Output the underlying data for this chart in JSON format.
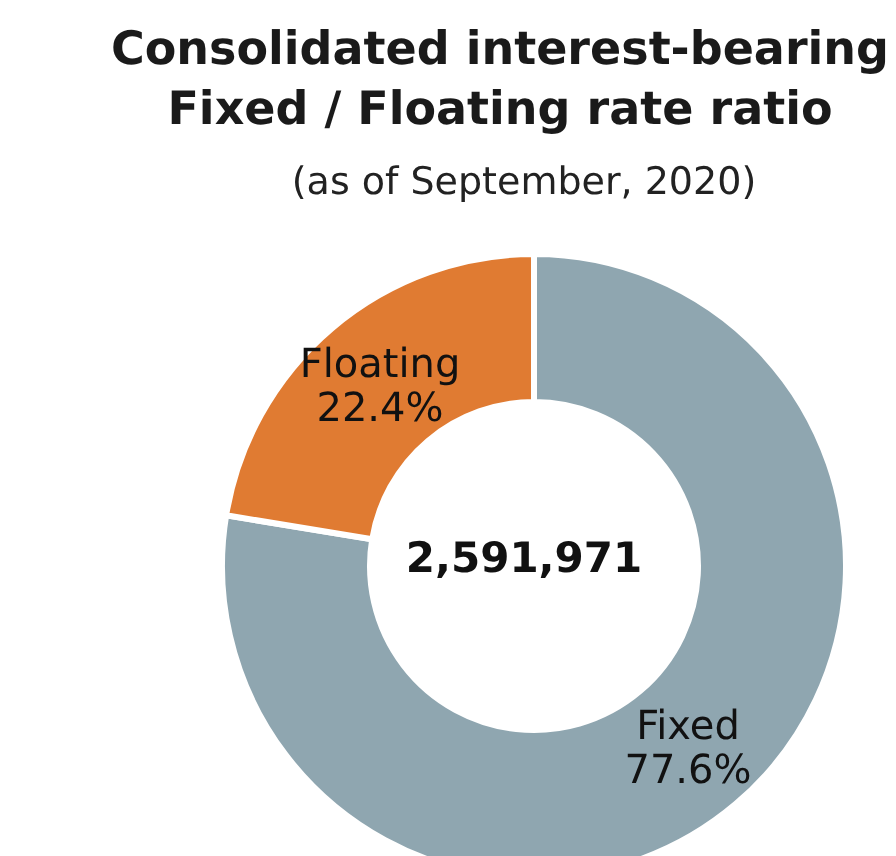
{
  "chart_data": {
    "type": "donut",
    "title": "Consolidated interest-bearing\nFixed / Floating rate ratio",
    "subtitle": "(as of September, 2020)",
    "categories": [
      "Fixed",
      "Floating"
    ],
    "values": [
      77.6,
      22.4
    ],
    "value_labels": [
      "77.6%",
      "22.4%"
    ],
    "colors": [
      "#8fa6b0",
      "#e07b32"
    ],
    "annotations": [
      "2,591,971"
    ]
  }
}
